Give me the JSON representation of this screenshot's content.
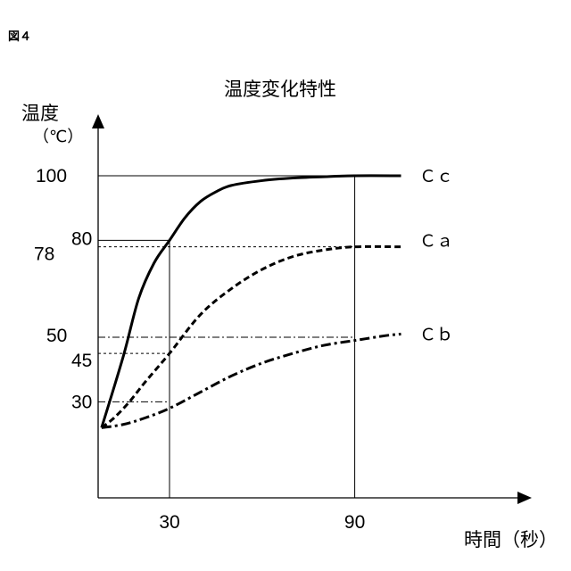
{
  "figure_label": "図４",
  "chart_data": {
    "type": "line",
    "title": "温度変化特性",
    "ylabel": "温度",
    "ylabel_unit": "（℃）",
    "xlabel": "時間（秒）",
    "x_ticks": [
      30,
      90
    ],
    "y_ticks": [
      30,
      45,
      50,
      78,
      80,
      100
    ],
    "xlim": [
      8,
      120
    ],
    "ylim": [
      -35,
      118
    ],
    "grid": false,
    "reference_lines": [
      {
        "axis": "y",
        "value": 100,
        "style": "solid",
        "x_to": 90
      },
      {
        "axis": "y",
        "value": 80,
        "style": "solid",
        "x_to": 30
      },
      {
        "axis": "y",
        "value": 78,
        "style": "dashed",
        "x_to": 90
      },
      {
        "axis": "y",
        "value": 50,
        "style": "dashdot",
        "x_to": 90
      },
      {
        "axis": "y",
        "value": 45,
        "style": "dashed",
        "x_to": 30
      },
      {
        "axis": "y",
        "value": 30,
        "style": "dashdot",
        "x_to": 30
      },
      {
        "axis": "x",
        "value": 30,
        "style": "solid",
        "y_to": 80
      },
      {
        "axis": "x",
        "value": 90,
        "style": "solid",
        "y_to": 100
      }
    ],
    "series": [
      {
        "name": "Ｃｃ",
        "style": "solid",
        "x": [
          8,
          15,
          20,
          25,
          30,
          35,
          40,
          45,
          50,
          60,
          70,
          80,
          90,
          105
        ],
        "y": [
          22,
          44,
          62,
          73,
          80,
          87,
          92,
          95,
          97,
          98.5,
          99.3,
          99.7,
          100,
          100
        ]
      },
      {
        "name": "Ｃａ",
        "style": "dashed",
        "x": [
          8,
          12,
          17,
          22,
          30,
          40,
          50,
          60,
          70,
          80,
          90,
          105
        ],
        "y": [
          22,
          25,
          30,
          36,
          45,
          57,
          65,
          71,
          75,
          77,
          78,
          78
        ]
      },
      {
        "name": "Ｃｂ",
        "style": "dashdot",
        "x": [
          8,
          15,
          22,
          30,
          40,
          50,
          60,
          70,
          80,
          90,
          100,
          105
        ],
        "y": [
          22,
          23,
          25,
          28,
          33,
          38,
          42,
          45,
          47.5,
          49,
          50.5,
          51
        ]
      }
    ]
  }
}
